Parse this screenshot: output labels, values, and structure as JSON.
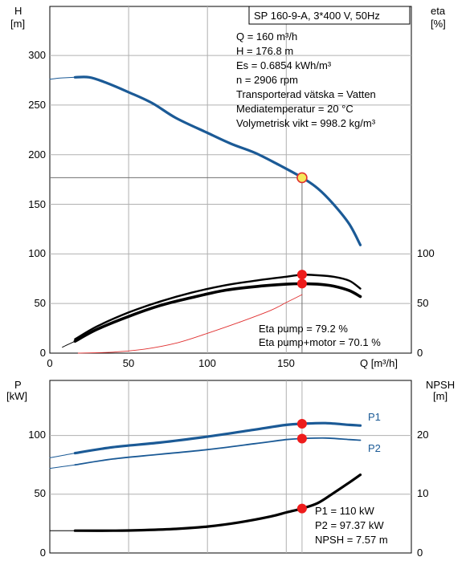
{
  "chart_data": [
    {
      "type": "line",
      "title": "SP 160-9-A, 3*400 V, 50Hz",
      "xlabel": "Q [m³/h]",
      "ylabel_left": [
        "H",
        "[m]"
      ],
      "ylabel_right": [
        "eta",
        "[%]"
      ],
      "xlim": [
        0,
        230
      ],
      "ylim_left": [
        0,
        300
      ],
      "ylim_right": [
        0,
        100
      ],
      "x_ticks": [
        "0",
        "50",
        "100",
        "150"
      ],
      "y_ticks_left": [
        "0",
        "50",
        "100",
        "150",
        "200",
        "250",
        "300"
      ],
      "y_ticks_right": [
        "0",
        "50",
        "100"
      ],
      "grid": true,
      "info_lines": [
        "Q = 160 m³/h",
        "H = 176.8 m",
        "Es = 0.6854 kWh/m³",
        "n = 2906 rpm",
        "Transporterad vätska = Vatten",
        "Mediatemperatur = 20 °C",
        "Volymetrisk vikt = 998.2 kg/m³"
      ],
      "result_lines": [
        "Eta pump = 79.2 %",
        "Eta pump+motor = 70.1 %"
      ],
      "operating_point": {
        "q": 160,
        "h": 176.8,
        "eta_pump": 79.2,
        "eta_total": 70.1
      },
      "series": [
        {
          "role": "H",
          "axis": "left",
          "color": "#1b5a96",
          "x": [
            16,
            25,
            35,
            50,
            65,
            80,
            100,
            115,
            130,
            145,
            160,
            170,
            180,
            190,
            197
          ],
          "y": [
            278,
            278,
            273,
            263,
            252,
            237,
            222,
            211,
            202,
            190,
            177,
            166,
            150,
            130,
            109
          ]
        },
        {
          "role": "H-extension",
          "axis": "left",
          "color": "#1b5a96",
          "x": [
            0,
            5,
            10,
            16
          ],
          "y": [
            276,
            277,
            277.5,
            278
          ]
        },
        {
          "role": "eta pump",
          "axis": "right",
          "color": "#000000",
          "x": [
            16,
            30,
            50,
            70,
            90,
            110,
            130,
            150,
            160,
            170,
            180,
            190,
            197
          ],
          "y": [
            14,
            27,
            41,
            52,
            61,
            68,
            73,
            77,
            79,
            78.5,
            77,
            73,
            65
          ]
        },
        {
          "role": "eta pump+motor",
          "axis": "right",
          "color": "#000000",
          "x": [
            16,
            30,
            50,
            70,
            90,
            110,
            130,
            150,
            160,
            170,
            180,
            190,
            197
          ],
          "y": [
            12,
            24,
            37,
            48,
            56,
            63,
            67,
            69.5,
            70,
            69.5,
            67.5,
            63,
            57
          ]
        },
        {
          "role": "eta-extension",
          "axis": "right",
          "color": "#000000",
          "x": [
            8,
            16
          ],
          "y": [
            6,
            12
          ]
        },
        {
          "role": "eta construction",
          "axis": "right",
          "color": "#e03030",
          "x": [
            18,
            40,
            60,
            80,
            100,
            120,
            140,
            150,
            160
          ],
          "y": [
            0,
            1,
            4,
            10,
            20,
            31,
            43,
            51,
            59
          ]
        }
      ]
    },
    {
      "type": "line",
      "xlim": [
        0,
        230
      ],
      "ylim_left": [
        0,
        125
      ],
      "ylim_right": [
        0,
        25
      ],
      "ylabel_left": [
        "P",
        "[kW]"
      ],
      "ylabel_right": [
        "NPSH",
        "[m]"
      ],
      "y_ticks_left": [
        "0",
        "50",
        "100"
      ],
      "y_ticks_right": [
        "0",
        "10",
        "20"
      ],
      "grid": true,
      "result_lines": [
        "P1 = 110 kW",
        "P2 = 97.37 kW",
        "NPSH = 7.57 m"
      ],
      "operating_point": {
        "q": 160,
        "p1": 110,
        "p2": 97.37,
        "npsh": 7.57
      },
      "series": [
        {
          "name": "P1",
          "axis": "left",
          "color": "#1b5a96",
          "x": [
            16,
            40,
            70,
            100,
            130,
            150,
            160,
            175,
            190,
            197
          ],
          "y": [
            85,
            90,
            94,
            99,
            105,
            109,
            110,
            110.5,
            109,
            108.5
          ]
        },
        {
          "name": "P2",
          "axis": "left",
          "color": "#1b5a96",
          "x": [
            16,
            40,
            70,
            100,
            130,
            150,
            160,
            175,
            190,
            197
          ],
          "y": [
            75,
            80,
            84,
            88,
            93,
            96.5,
            97.4,
            97.8,
            96.5,
            96
          ]
        },
        {
          "role": "P1-extension",
          "axis": "left",
          "color": "#1b5a96",
          "x": [
            0,
            8,
            16
          ],
          "y": [
            81,
            83,
            85
          ]
        },
        {
          "role": "P2-extension",
          "axis": "left",
          "color": "#1b5a96",
          "x": [
            0,
            8,
            16
          ],
          "y": [
            72,
            73.5,
            75
          ]
        },
        {
          "role": "NPSH",
          "axis": "right",
          "color": "#000000",
          "x": [
            16,
            40,
            60,
            80,
            100,
            120,
            140,
            150,
            160,
            170,
            180,
            190,
            197
          ],
          "y": [
            3.8,
            3.8,
            3.9,
            4.1,
            4.5,
            5.2,
            6.2,
            6.9,
            7.57,
            8.5,
            10.2,
            12.0,
            13.3
          ]
        },
        {
          "role": "NPSH-extension",
          "axis": "right",
          "color": "#000000",
          "x": [
            0,
            16
          ],
          "y": [
            3.8,
            3.8
          ]
        }
      ]
    }
  ]
}
